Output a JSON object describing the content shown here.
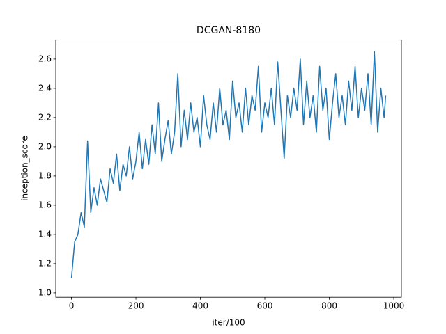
{
  "chart_data": {
    "type": "line",
    "title": "DCGAN-8180",
    "x_label": "iter/100",
    "y_label": "inception_score",
    "x": [
      0,
      10,
      20,
      30,
      40,
      50,
      60,
      70,
      80,
      90,
      100,
      110,
      120,
      130,
      140,
      150,
      160,
      170,
      180,
      190,
      200,
      210,
      220,
      230,
      240,
      250,
      260,
      270,
      280,
      290,
      300,
      310,
      320,
      330,
      340,
      350,
      360,
      370,
      380,
      390,
      400,
      410,
      420,
      430,
      440,
      450,
      460,
      470,
      480,
      490,
      500,
      510,
      520,
      530,
      540,
      550,
      560,
      570,
      580,
      590,
      600,
      610,
      620,
      630,
      640,
      650,
      660,
      670,
      680,
      690,
      700,
      710,
      720,
      730,
      740,
      750,
      760,
      770,
      780,
      790,
      800,
      810,
      820,
      830,
      840,
      850,
      860,
      870,
      880,
      890,
      900,
      910,
      920,
      930,
      940,
      950,
      960,
      970,
      975
    ],
    "series": [
      {
        "name": "inception_score",
        "color": "#1f77b4",
        "values": [
          1.1,
          1.35,
          1.4,
          1.55,
          1.45,
          2.04,
          1.55,
          1.72,
          1.6,
          1.78,
          1.7,
          1.62,
          1.85,
          1.75,
          1.95,
          1.7,
          1.88,
          1.8,
          2.0,
          1.78,
          1.9,
          2.1,
          1.85,
          2.05,
          1.88,
          2.15,
          1.95,
          2.3,
          1.9,
          2.05,
          2.18,
          1.95,
          2.1,
          2.5,
          2.0,
          2.25,
          2.05,
          2.3,
          2.1,
          2.2,
          2.0,
          2.35,
          2.15,
          2.05,
          2.3,
          2.1,
          2.4,
          2.15,
          2.25,
          2.05,
          2.45,
          2.2,
          2.3,
          2.1,
          2.4,
          2.15,
          2.35,
          2.25,
          2.55,
          2.1,
          2.3,
          2.2,
          2.4,
          2.15,
          2.58,
          2.25,
          1.92,
          2.35,
          2.2,
          2.4,
          2.25,
          2.6,
          2.15,
          2.45,
          2.2,
          2.35,
          2.1,
          2.55,
          2.25,
          2.4,
          2.05,
          2.3,
          2.5,
          2.2,
          2.35,
          2.15,
          2.45,
          2.25,
          2.55,
          2.2,
          2.4,
          2.25,
          2.5,
          2.15,
          2.65,
          2.1,
          2.4,
          2.2,
          2.35
        ]
      }
    ],
    "xlim": [
      -48.75,
      1023.75
    ],
    "ylim": [
      0.97,
      2.73
    ],
    "xticks": [
      0,
      200,
      400,
      600,
      800,
      1000
    ],
    "yticks": [
      {
        "value": 1.0,
        "label": "1.0"
      },
      1.2,
      1.4,
      1.6,
      1.8,
      {
        "value": 2.0,
        "label": "2.0"
      },
      2.2,
      2.4,
      2.6
    ]
  }
}
